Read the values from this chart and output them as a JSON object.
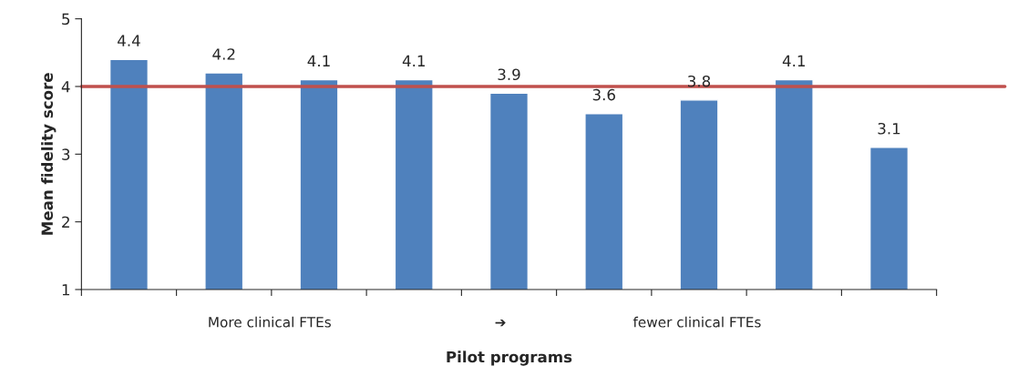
{
  "chart_data": {
    "type": "bar",
    "xlabel": "Pilot programs",
    "ylabel": "Mean fidelity score",
    "categories": [
      null,
      null,
      null,
      null,
      null,
      null,
      null,
      null,
      null
    ],
    "values": [
      4.4,
      4.2,
      4.1,
      4.1,
      3.9,
      3.6,
      3.8,
      4.1,
      3.1
    ],
    "color": "#4f81bd",
    "ylim": [
      1,
      5
    ],
    "yticks": [
      1,
      2,
      3,
      4,
      5
    ],
    "grid": false,
    "data_labels": true,
    "ref_lines": [
      {
        "axis": "y",
        "value": 4,
        "color": "#c0504d",
        "line_style": "solid"
      }
    ],
    "annotations": [
      "More clinical FTEs",
      "➔",
      "fewer clinical FTEs"
    ]
  }
}
